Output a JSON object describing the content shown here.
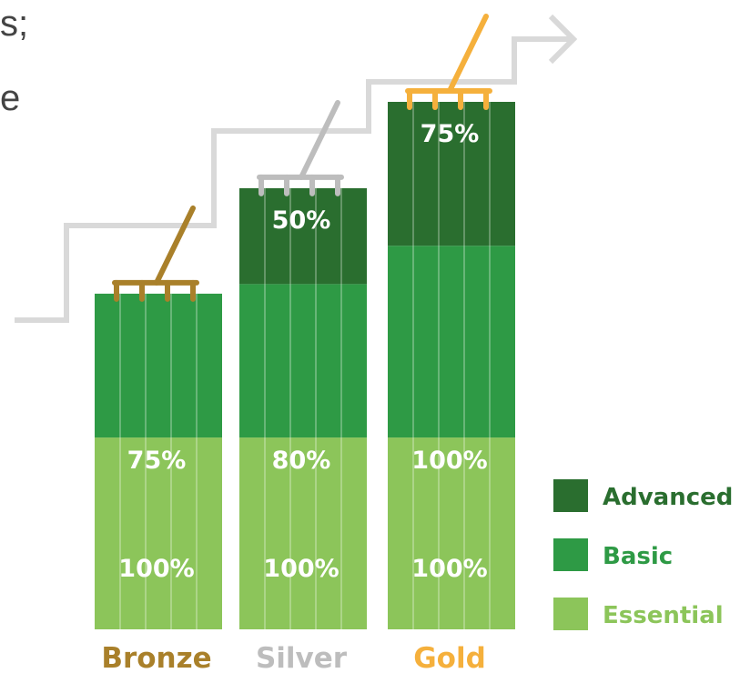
{
  "page_fragments": {
    "line1": "s;",
    "line2": "e"
  },
  "colors": {
    "advanced": "#2A6E2F",
    "basic": "#2E9A45",
    "essential": "#8CC55A",
    "bronze": "#A9802A",
    "silver": "#BDBDBD",
    "gold": "#F5B03C",
    "stairs": "#D9D9D9"
  },
  "chart_data": {
    "type": "bar",
    "stacked": true,
    "categories": [
      "Bronze",
      "Silver",
      "Gold"
    ],
    "series": [
      {
        "name": "Essential",
        "values": [
          100,
          100,
          100
        ]
      },
      {
        "name": "Basic",
        "values": [
          75,
          80,
          100
        ]
      },
      {
        "name": "Advanced",
        "values": [
          null,
          50,
          75
        ]
      }
    ],
    "value_labels": [
      [
        "100%",
        "75%",
        ""
      ],
      [
        "100%",
        "80%",
        "50%"
      ],
      [
        "100%",
        "100%",
        "75%"
      ]
    ],
    "legend": {
      "position": "right",
      "entries": [
        "Advanced",
        "Basic",
        "Essential"
      ]
    },
    "grid": false,
    "ylim": [
      0,
      275
    ]
  }
}
